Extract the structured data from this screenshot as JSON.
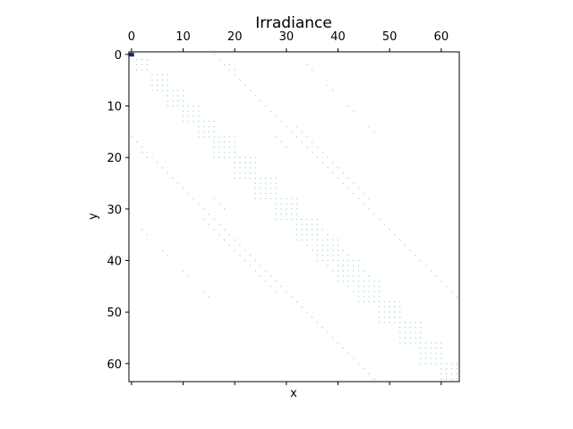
{
  "chart_data": {
    "type": "heatmap",
    "title": "Irradiance",
    "xlabel": "x",
    "ylabel": "y",
    "xlim": [
      -0.5,
      63.5
    ],
    "ylim": [
      63.5,
      -0.5
    ],
    "x_ticks": [
      0,
      10,
      20,
      30,
      40,
      50,
      60
    ],
    "y_ticks": [
      0,
      10,
      20,
      30,
      40,
      50,
      60
    ],
    "x_tick_position": "top",
    "grid": false,
    "colors": {
      "background": "#ffffff",
      "sparse_dot": "#8fd3e6",
      "max_cell": "#1f2a6b"
    },
    "max_cell": [
      0,
      0
    ],
    "blocks": [
      [
        1,
        1,
        3
      ],
      [
        4,
        4,
        4
      ],
      [
        7,
        7,
        4
      ],
      [
        10,
        10,
        4
      ],
      [
        13,
        13,
        4
      ],
      [
        16,
        16,
        5
      ],
      [
        20,
        20,
        5
      ],
      [
        24,
        24,
        5
      ],
      [
        28,
        28,
        5
      ],
      [
        32,
        32,
        5
      ],
      [
        36,
        36,
        5
      ],
      [
        40,
        40,
        5
      ],
      [
        44,
        44,
        5
      ],
      [
        48,
        48,
        5
      ],
      [
        52,
        52,
        5
      ],
      [
        56,
        56,
        5
      ],
      [
        60,
        60,
        4
      ]
    ],
    "diagonal_lines": [
      {
        "from": [
          16,
          0
        ],
        "to": [
          63,
          47
        ]
      },
      {
        "from": [
          0,
          16
        ],
        "to": [
          47,
          63
        ]
      },
      {
        "from": [
          30,
          14
        ],
        "to": [
          63,
          47
        ]
      },
      {
        "from": [
          14,
          30
        ],
        "to": [
          47,
          63
        ]
      },
      {
        "from": [
          32,
          14
        ],
        "to": [
          46,
          28
        ]
      },
      {
        "from": [
          14,
          32
        ],
        "to": [
          28,
          46
        ]
      },
      {
        "from": [
          36,
          33
        ],
        "to": [
          46,
          43
        ]
      },
      {
        "from": [
          33,
          36
        ],
        "to": [
          43,
          46
        ]
      },
      {
        "from": [
          19,
          2
        ],
        "to": [
          20,
          3
        ]
      },
      {
        "from": [
          2,
          19
        ],
        "to": [
          3,
          20
        ]
      },
      {
        "from": [
          34,
          2
        ],
        "to": [
          35,
          3
        ]
      },
      {
        "from": [
          2,
          34
        ],
        "to": [
          3,
          35
        ]
      },
      {
        "from": [
          22,
          6
        ],
        "to": [
          23,
          7
        ]
      },
      {
        "from": [
          6,
          22
        ],
        "to": [
          7,
          23
        ]
      },
      {
        "from": [
          38,
          6
        ],
        "to": [
          39,
          7
        ]
      },
      {
        "from": [
          6,
          38
        ],
        "to": [
          7,
          39
        ]
      },
      {
        "from": [
          26,
          10
        ],
        "to": [
          27,
          11
        ]
      },
      {
        "from": [
          10,
          26
        ],
        "to": [
          11,
          27
        ]
      },
      {
        "from": [
          42,
          10
        ],
        "to": [
          43,
          11
        ]
      },
      {
        "from": [
          10,
          42
        ],
        "to": [
          11,
          43
        ]
      },
      {
        "from": [
          46,
          14
        ],
        "to": [
          47,
          15
        ]
      },
      {
        "from": [
          14,
          46
        ],
        "to": [
          15,
          47
        ]
      },
      {
        "from": [
          16,
          28
        ],
        "to": [
          18,
          30
        ]
      },
      {
        "from": [
          28,
          16
        ],
        "to": [
          30,
          18
        ]
      }
    ]
  }
}
